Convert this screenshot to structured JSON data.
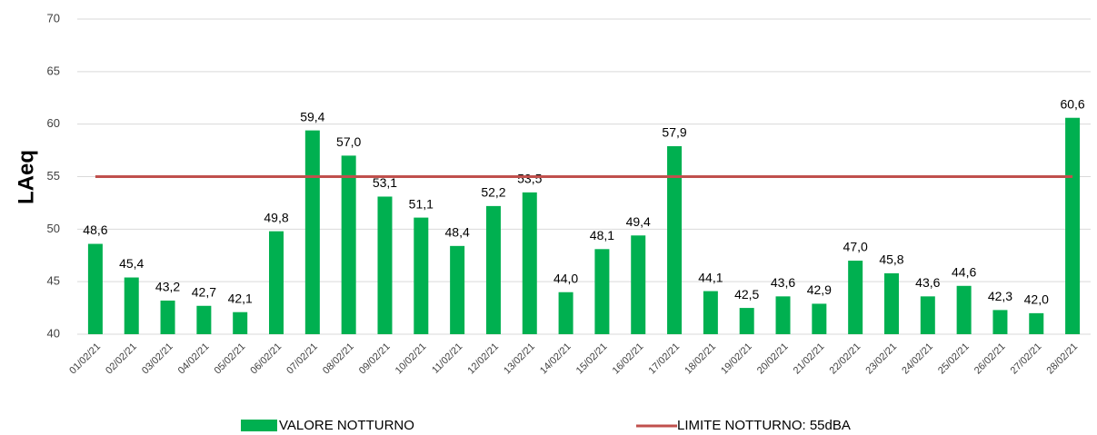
{
  "chart_data": {
    "type": "bar",
    "y_label": "LAeq",
    "categories": [
      "01/02/21",
      "02/02/21",
      "03/02/21",
      "04/02/21",
      "05/02/21",
      "06/02/21",
      "07/02/21",
      "08/02/21",
      "09/02/21",
      "10/02/21",
      "11/02/21",
      "12/02/21",
      "13/02/21",
      "14/02/21",
      "15/02/21",
      "16/02/21",
      "17/02/21",
      "18/02/21",
      "19/02/21",
      "20/02/21",
      "21/02/21",
      "22/02/21",
      "23/02/21",
      "24/02/21",
      "25/02/21",
      "26/02/21",
      "27/02/21",
      "28/02/21"
    ],
    "series": [
      {
        "name": "VALORE NOTTURNO",
        "color": "#00b050",
        "values": [
          48.6,
          45.4,
          43.2,
          42.7,
          42.1,
          49.8,
          59.4,
          57.0,
          53.1,
          51.1,
          48.4,
          52.2,
          53.5,
          44.0,
          48.1,
          49.4,
          57.9,
          44.1,
          42.5,
          43.6,
          42.9,
          47.0,
          45.8,
          43.6,
          44.6,
          42.3,
          42.0,
          60.6
        ],
        "value_labels": [
          "48,6",
          "45,4",
          "43,2",
          "42,7",
          "42,1",
          "49,8",
          "59,4",
          "57,0",
          "53,1",
          "51,1",
          "48,4",
          "52,2",
          "53,5",
          "44,0",
          "48,1",
          "49,4",
          "57,9",
          "44,1",
          "42,5",
          "43,6",
          "42,9",
          "47,0",
          "45,8",
          "43,6",
          "44,6",
          "42,3",
          "42,0",
          "60,6"
        ]
      }
    ],
    "reference_line": {
      "name": "LIMITE NOTTURNO: 55dBA",
      "value": 55,
      "color": "#c0504d"
    },
    "ylim": [
      40,
      70
    ],
    "yticks": [
      40,
      45,
      50,
      55,
      60,
      65,
      70
    ],
    "grid": true
  }
}
